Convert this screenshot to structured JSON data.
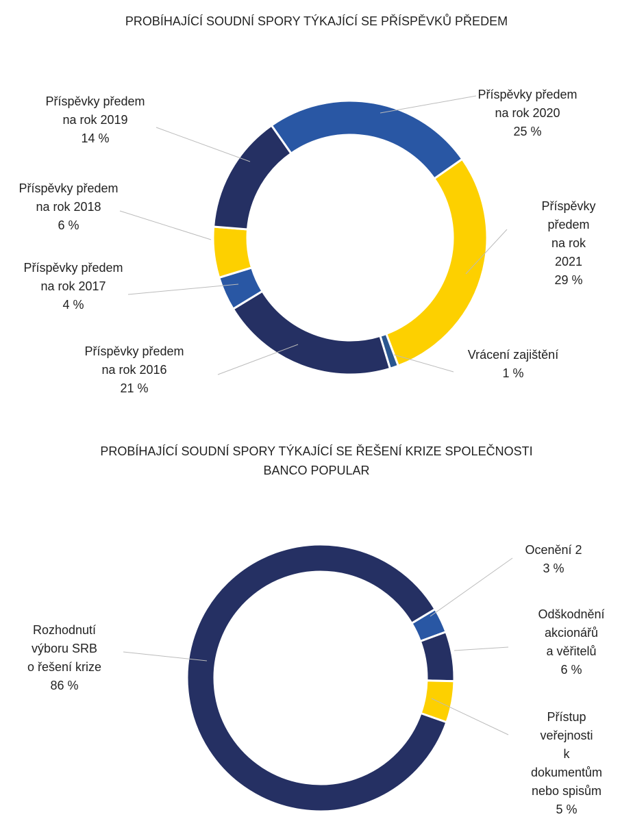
{
  "chart_data": [
    {
      "type": "donut",
      "title": "PROBÍHAJÍCÍ SOUDNÍ SPORY TÝKAJÍCÍ SE PŘÍSPĚVKŮ PŘEDEM",
      "categories": [
        "Příspěvky předem\nna rok 2020",
        "Příspěvky předem\nna rok 2021",
        "Vrácení zajištění",
        "Příspěvky předem\nna rok 2016",
        "Příspěvky předem\nna rok 2017",
        "Příspěvky předem\nna rok 2018",
        "Příspěvky předem\nna rok 2019"
      ],
      "values": [
        25,
        29,
        1,
        21,
        4,
        6,
        14
      ],
      "value_labels": [
        "25 %",
        "29 %",
        "1 %",
        "21 %",
        "4 %",
        "6 %",
        "14 %"
      ],
      "colors": [
        "#2957a4",
        "#fdd000",
        "#2a5690",
        "#253063",
        "#2957a4",
        "#fdd000",
        "#253063"
      ]
    },
    {
      "type": "donut",
      "title": "PROBÍHAJÍCÍ SOUDNÍ SPORY TÝKAJÍCÍ SE ŘEŠENÍ KRIZE SPOLEČNOSTI\nBANCO POPULAR",
      "categories": [
        "Ocenění 2",
        "Odškodnění\nakcionářů\na věřitelů",
        "Přístup veřejnosti\nk dokumentům\nnebo spisům",
        "Rozhodnutí\nvýboru SRB\no řešení krize"
      ],
      "values": [
        3,
        6,
        5,
        86
      ],
      "value_labels": [
        "3 %",
        "6 %",
        "5 %",
        "86 %"
      ],
      "colors": [
        "#2957a4",
        "#253063",
        "#fdd000",
        "#253063"
      ]
    }
  ]
}
